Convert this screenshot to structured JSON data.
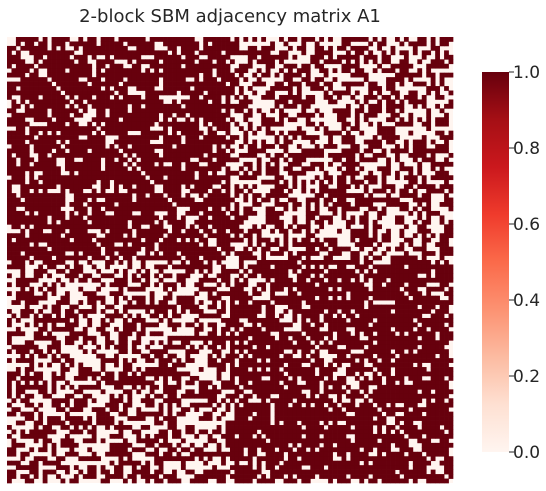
{
  "chart_data": {
    "type": "heatmap",
    "title": "2-block SBM adjacency matrix A1",
    "xlabel": "",
    "ylabel": "",
    "n_nodes": 100,
    "blocks": [
      50,
      50
    ],
    "p_within": 0.8,
    "p_between": 0.5,
    "diagonal": 0,
    "symmetric": true,
    "value_range": [
      0.0,
      1.0
    ],
    "colormap": {
      "name": "Reds",
      "low_color": "#fff5f0",
      "mid_colors": [
        "#fee0d2",
        "#fcbba1",
        "#fc9272",
        "#fb6a4a",
        "#ef3b2c",
        "#cb181d",
        "#a50f15"
      ],
      "high_color": "#67000d"
    },
    "colorbar": {
      "ticks": [
        "0.0",
        "0.2",
        "0.4",
        "0.6",
        "0.8",
        "1.0"
      ],
      "tick_values": [
        0.0,
        0.2,
        0.4,
        0.6,
        0.8,
        1.0
      ]
    },
    "grid": false,
    "tick_labels_shown": false
  }
}
